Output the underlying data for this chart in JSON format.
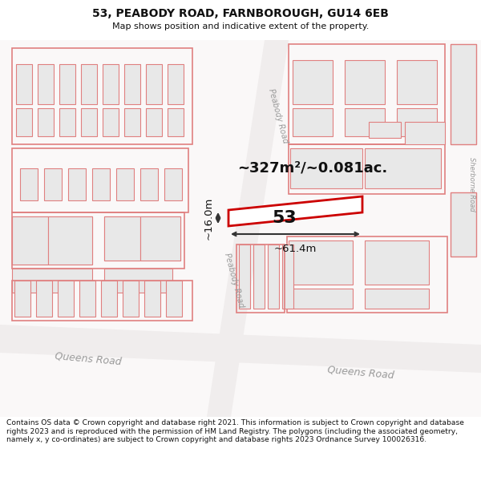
{
  "title_line1": "53, PEABODY ROAD, FARNBOROUGH, GU14 6EB",
  "title_line2": "Map shows position and indicative extent of the property.",
  "footer_text": "Contains OS data © Crown copyright and database right 2021. This information is subject to Crown copyright and database rights 2023 and is reproduced with the permission of HM Land Registry. The polygons (including the associated geometry, namely x, y co-ordinates) are subject to Crown copyright and database rights 2023 Ordnance Survey 100026316.",
  "area_text": "~327m²/~0.081ac.",
  "dim_width_text": "~61.4m",
  "dim_height_text": "~16.0m",
  "label_53": "53",
  "road_peabody": "Peabody Road",
  "road_queens": "Queens Road",
  "road_sherborne": "Sherborne Road",
  "map_bg": "#ffffff",
  "building_fill": "#e8e8e8",
  "building_edge": "#e08080",
  "property_fill": "#ffffff",
  "property_edge": "#cc0000",
  "road_label_color": "#999999",
  "dim_color": "#333333",
  "text_color": "#111111",
  "outer_fill": "#f0ecec"
}
